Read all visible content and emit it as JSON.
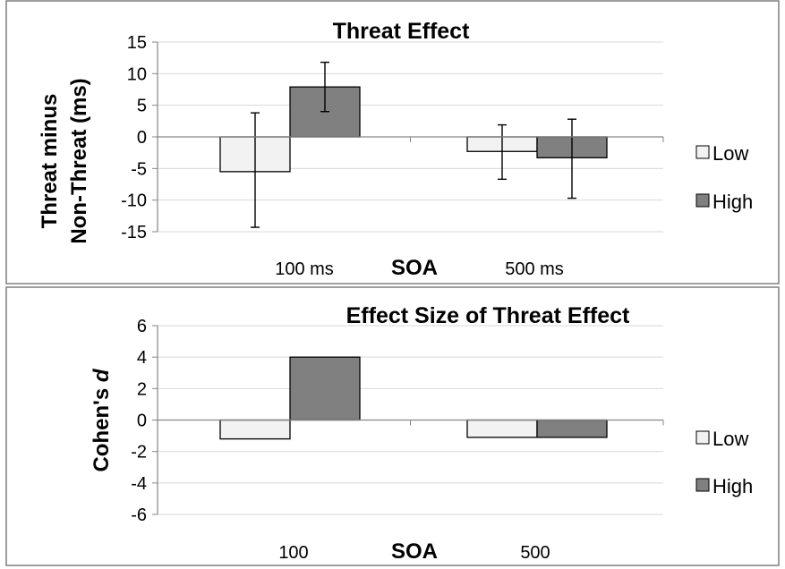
{
  "colors": {
    "low": "#f2f2f2",
    "high": "#808080",
    "grid": "#d9d9d9",
    "axis": "#868686",
    "border": "#7f7f7f",
    "bar_stroke": "#000000"
  },
  "chart_data": [
    {
      "type": "bar",
      "title": "Threat Effect",
      "xlabel": "SOA",
      "ylabel": [
        "Threat minus",
        "Non-Threat (ms)"
      ],
      "categories": [
        "100  ms",
        "500 ms"
      ],
      "ylim": [
        -15,
        15
      ],
      "yticks": [
        15,
        10,
        5,
        0,
        -5,
        -10,
        -15
      ],
      "grid": true,
      "legend_position": "right",
      "series": [
        {
          "name": "Low",
          "values": [
            -5.5,
            -2.3
          ],
          "err_upper": [
            3.8,
            1.9
          ],
          "err_lower": [
            -14.3,
            -6.7
          ]
        },
        {
          "name": "High",
          "values": [
            7.9,
            -3.3
          ],
          "err_upper": [
            11.8,
            2.8
          ],
          "err_lower": [
            4.0,
            -9.7
          ]
        }
      ]
    },
    {
      "type": "bar",
      "title": "Effect Size of Threat Effect",
      "xlabel": "SOA",
      "ylabel_prefix": "Cohen's ",
      "ylabel_italic": "d",
      "categories": [
        "100",
        "500"
      ],
      "ylim": [
        -6,
        6
      ],
      "yticks": [
        6,
        4,
        2,
        0,
        -2,
        -4,
        -6
      ],
      "grid": true,
      "legend_position": "right",
      "series": [
        {
          "name": "Low",
          "values": [
            -1.2,
            -1.1
          ]
        },
        {
          "name": "High",
          "values": [
            4.0,
            -1.1
          ]
        }
      ]
    }
  ]
}
